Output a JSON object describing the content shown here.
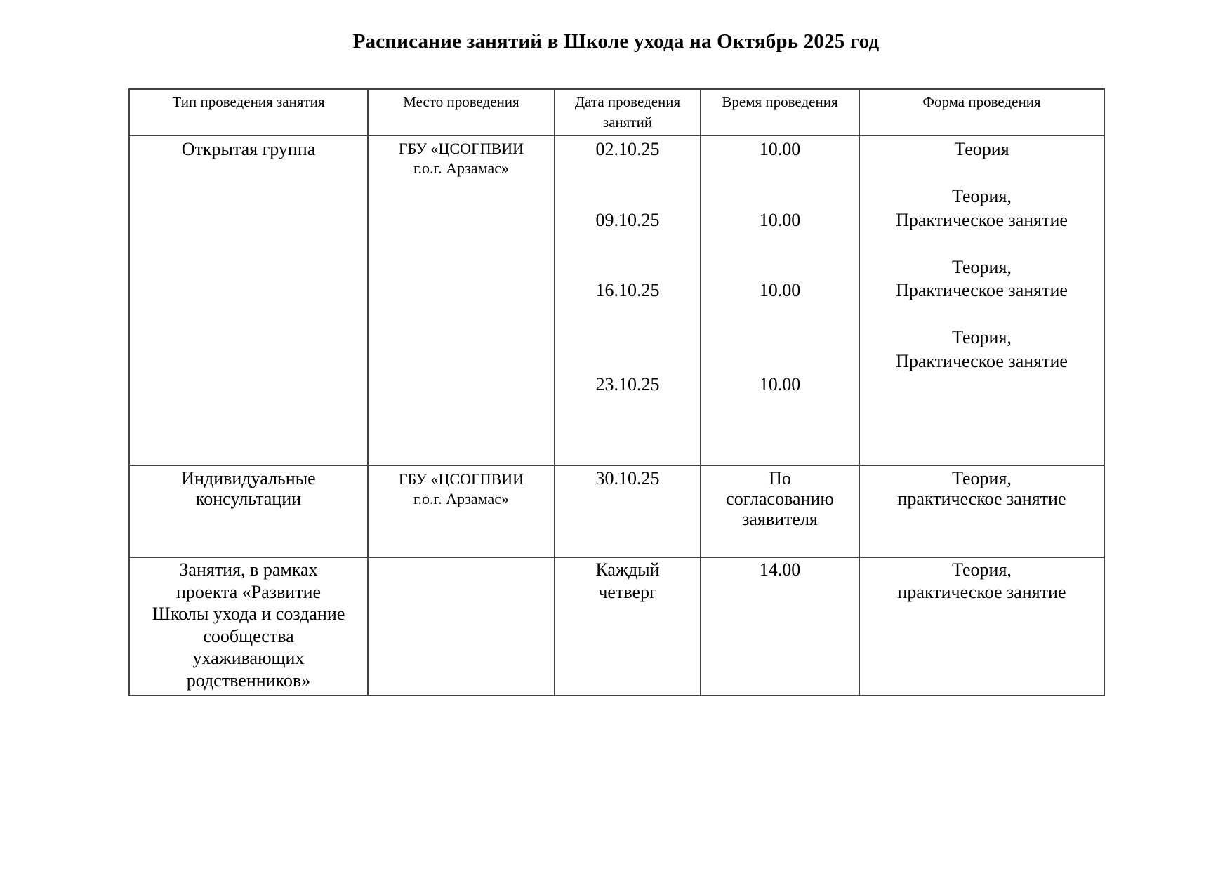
{
  "page": {
    "title": "Расписание занятий в Школе ухода на Октябрь 2025 год"
  },
  "table": {
    "columns": [
      {
        "label": "Тип проведения занятия"
      },
      {
        "label": "Место проведения"
      },
      {
        "label": "Дата проведения занятий"
      },
      {
        "label": "Время проведения"
      },
      {
        "label": "Форма проведения"
      }
    ],
    "rows": [
      {
        "cells": [
          {
            "lines": [
              "Открытая группа"
            ]
          },
          {
            "lines": [
              "ГБУ «ЦСОГПВИИ",
              "г.о.г. Арзамас»"
            ]
          },
          {
            "lines": [
              "02.10.25",
              "",
              "",
              "09.10.25",
              "",
              "",
              "16.10.25",
              "",
              "",
              "",
              "23.10.25"
            ]
          },
          {
            "lines": [
              "10.00",
              "",
              "",
              "10.00",
              "",
              "",
              "10.00",
              "",
              "",
              "",
              "10.00"
            ]
          },
          {
            "lines": [
              "Теория",
              "",
              "Теория,",
              "Практическое занятие",
              "",
              "Теория,",
              "Практическое занятие",
              "",
              "Теория,",
              "Практическое занятие"
            ]
          }
        ]
      },
      {
        "cells": [
          {
            "lines": [
              "Индивидуальные",
              "консультации"
            ]
          },
          {
            "lines": [
              "ГБУ «ЦСОГПВИИ",
              "г.о.г. Арзамас»"
            ]
          },
          {
            "lines": [
              "30.10.25"
            ]
          },
          {
            "lines": [
              "По",
              "согласованию",
              "заявителя"
            ]
          },
          {
            "lines": [
              "Теория,",
              "практическое занятие"
            ]
          }
        ]
      },
      {
        "cells": [
          {
            "lines": [
              "Занятия, в рамках",
              "проекта «Развитие",
              "Школы ухода и создание",
              "сообщества",
              "ухаживающих",
              "родственников»"
            ]
          },
          {
            "lines": []
          },
          {
            "lines": [
              "Каждый",
              "четверг"
            ]
          },
          {
            "lines": [
              "14.00"
            ]
          },
          {
            "lines": [
              "Теория,",
              "практическое занятие"
            ]
          }
        ]
      }
    ]
  }
}
